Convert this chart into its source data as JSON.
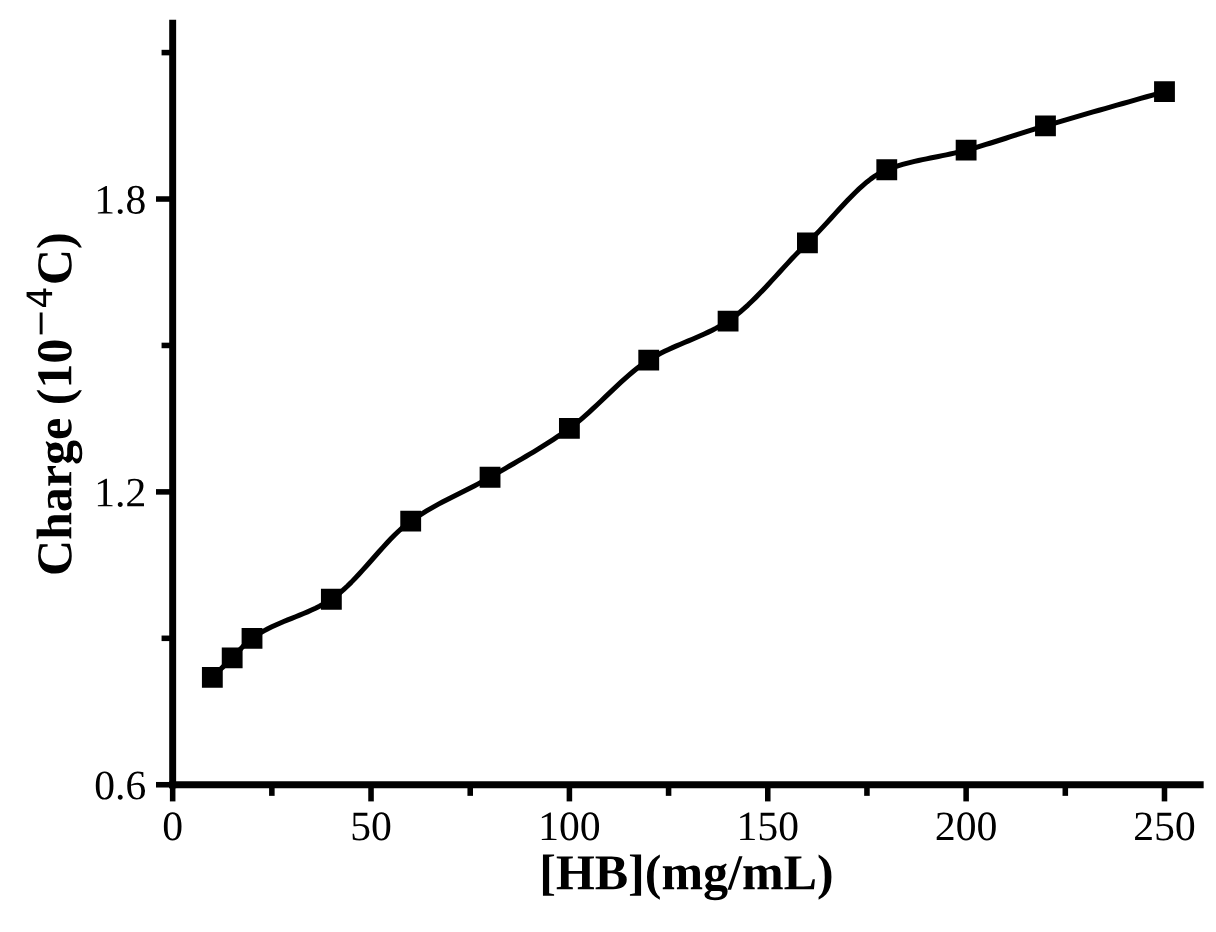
{
  "chart_data": {
    "type": "line",
    "xlabel": "[HB](mg/mL)",
    "ylabel": "Charge (10$^{−4}$C)",
    "x": [
      10,
      15,
      20,
      40,
      60,
      80,
      100,
      120,
      140,
      160,
      180,
      200,
      220,
      250
    ],
    "series": [
      {
        "color": "#000000",
        "values": [
          0.82,
          0.86,
          0.9,
          0.98,
          1.14,
          1.23,
          1.33,
          1.47,
          1.55,
          1.71,
          1.86,
          1.9,
          1.95,
          2.02
        ]
      }
    ],
    "marker": "square",
    "line_style": "solid",
    "xlim": [
      0,
      259
    ],
    "ylim": [
      0.6,
      2.16
    ],
    "xticks": [
      0,
      {
        "value": 25,
        "label": null
      },
      50,
      {
        "value": 75,
        "label": null
      },
      100,
      {
        "value": 125,
        "label": null
      },
      150,
      {
        "value": 175,
        "label": null
      },
      200,
      {
        "value": 225,
        "label": null
      },
      250
    ],
    "yticks": [
      0.6,
      {
        "value": 0.9,
        "label": null
      },
      1.2,
      {
        "value": 1.5,
        "label": null
      },
      1.8,
      {
        "value": 2.1,
        "label": null
      }
    ],
    "grid": false,
    "legend": false
  }
}
